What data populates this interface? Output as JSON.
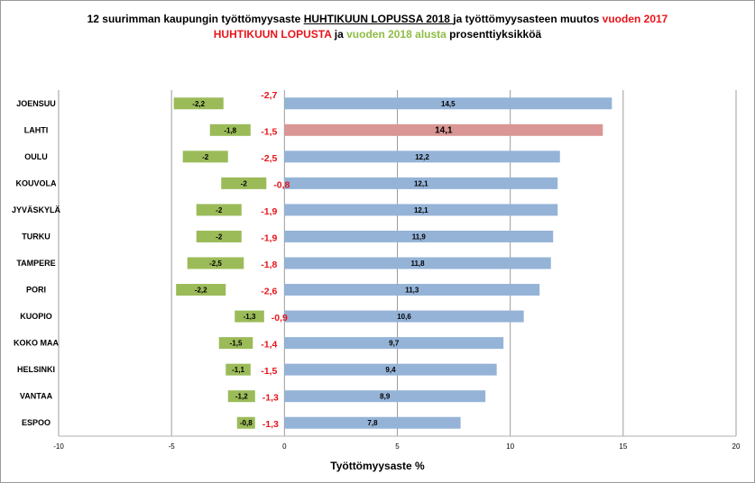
{
  "title_line1": {
    "part1": "12 suurimman kaupungin työttömyysaste ",
    "part2": "HUHTIKUUN LOPUSSA 2018 ",
    "part3": " ja työttömyysasteen muutos ",
    "part4": "vuoden 2017"
  },
  "title_line2": {
    "part1": "HUHTIKUUN LOPUSTA",
    "part2": " ja ",
    "part3": "vuoden 2018 alusta",
    "part4": " prosenttiyksikköä"
  },
  "colors": {
    "blue_bar": "#95b3d7",
    "highlight_bar": "#d99694",
    "green_bar": "#9bbb59",
    "red_text": "#e8141b",
    "grid": "#9c9c9c"
  },
  "chart_data": {
    "type": "bar",
    "orientation": "horizontal",
    "categories": [
      "JOENSUU",
      "LAHTI",
      "OULU",
      "KOUVOLA",
      "JYVÄSKYLÄ",
      "TURKU",
      "TAMPERE",
      "PORI",
      "KUOPIO",
      "KOKO MAA",
      "HELSINKI",
      "VANTAA",
      "ESPOO"
    ],
    "series": [
      {
        "values": [
          14.5,
          14.1,
          12.2,
          12.1,
          12.1,
          11.9,
          11.8,
          11.3,
          10.6,
          9.7,
          9.4,
          8.9,
          7.8
        ],
        "labels": [
          "14,5",
          "14,1",
          "12,2",
          "12,1",
          "12,1",
          "11,9",
          "11,8",
          "11,3",
          "10,6",
          "9,7",
          "9,4",
          "8,9",
          "7,8"
        ]
      },
      {
        "values": [
          -2.2,
          -1.8,
          -2,
          -2,
          -2,
          -2,
          -2.5,
          -2.2,
          -1.3,
          -1.5,
          -1.1,
          -1.2,
          -0.8
        ],
        "labels": [
          "-2,2",
          "-1,8",
          "-2",
          "-2",
          "-2",
          "-2",
          "-2,5",
          "-2,2",
          "-1,3",
          "-1,5",
          "-1,1",
          "-1,2",
          "-0,8"
        ],
        "offset_start": [
          -4.9,
          -3.3,
          -4.5,
          -2.8,
          -3.9,
          -3.9,
          -4.3,
          -4.8,
          -2.2,
          -2.9,
          -2.6,
          -2.5,
          -2.1
        ]
      },
      {
        "values": [
          -2.7,
          -1.5,
          -2.5,
          -0.8,
          -1.9,
          -1.9,
          -1.8,
          -2.6,
          -0.9,
          -1.4,
          -1.5,
          -1.3,
          -1.3
        ],
        "labels": [
          "-2,7",
          "-1,5",
          "-2,5",
          "-0,8",
          "-1,9",
          "-1,9",
          "-1,8",
          "-2,6",
          "-0,9",
          "-1,4",
          "-1,5",
          "-1,3",
          "-1,3"
        ]
      }
    ],
    "highlight_category": "LAHTI",
    "xlim": [
      -10,
      20
    ],
    "x_ticks": [
      "-10",
      "-5",
      "0",
      "5",
      "10",
      "15",
      "20"
    ],
    "xlabel": "Työttömyysaste %",
    "grid": true
  }
}
